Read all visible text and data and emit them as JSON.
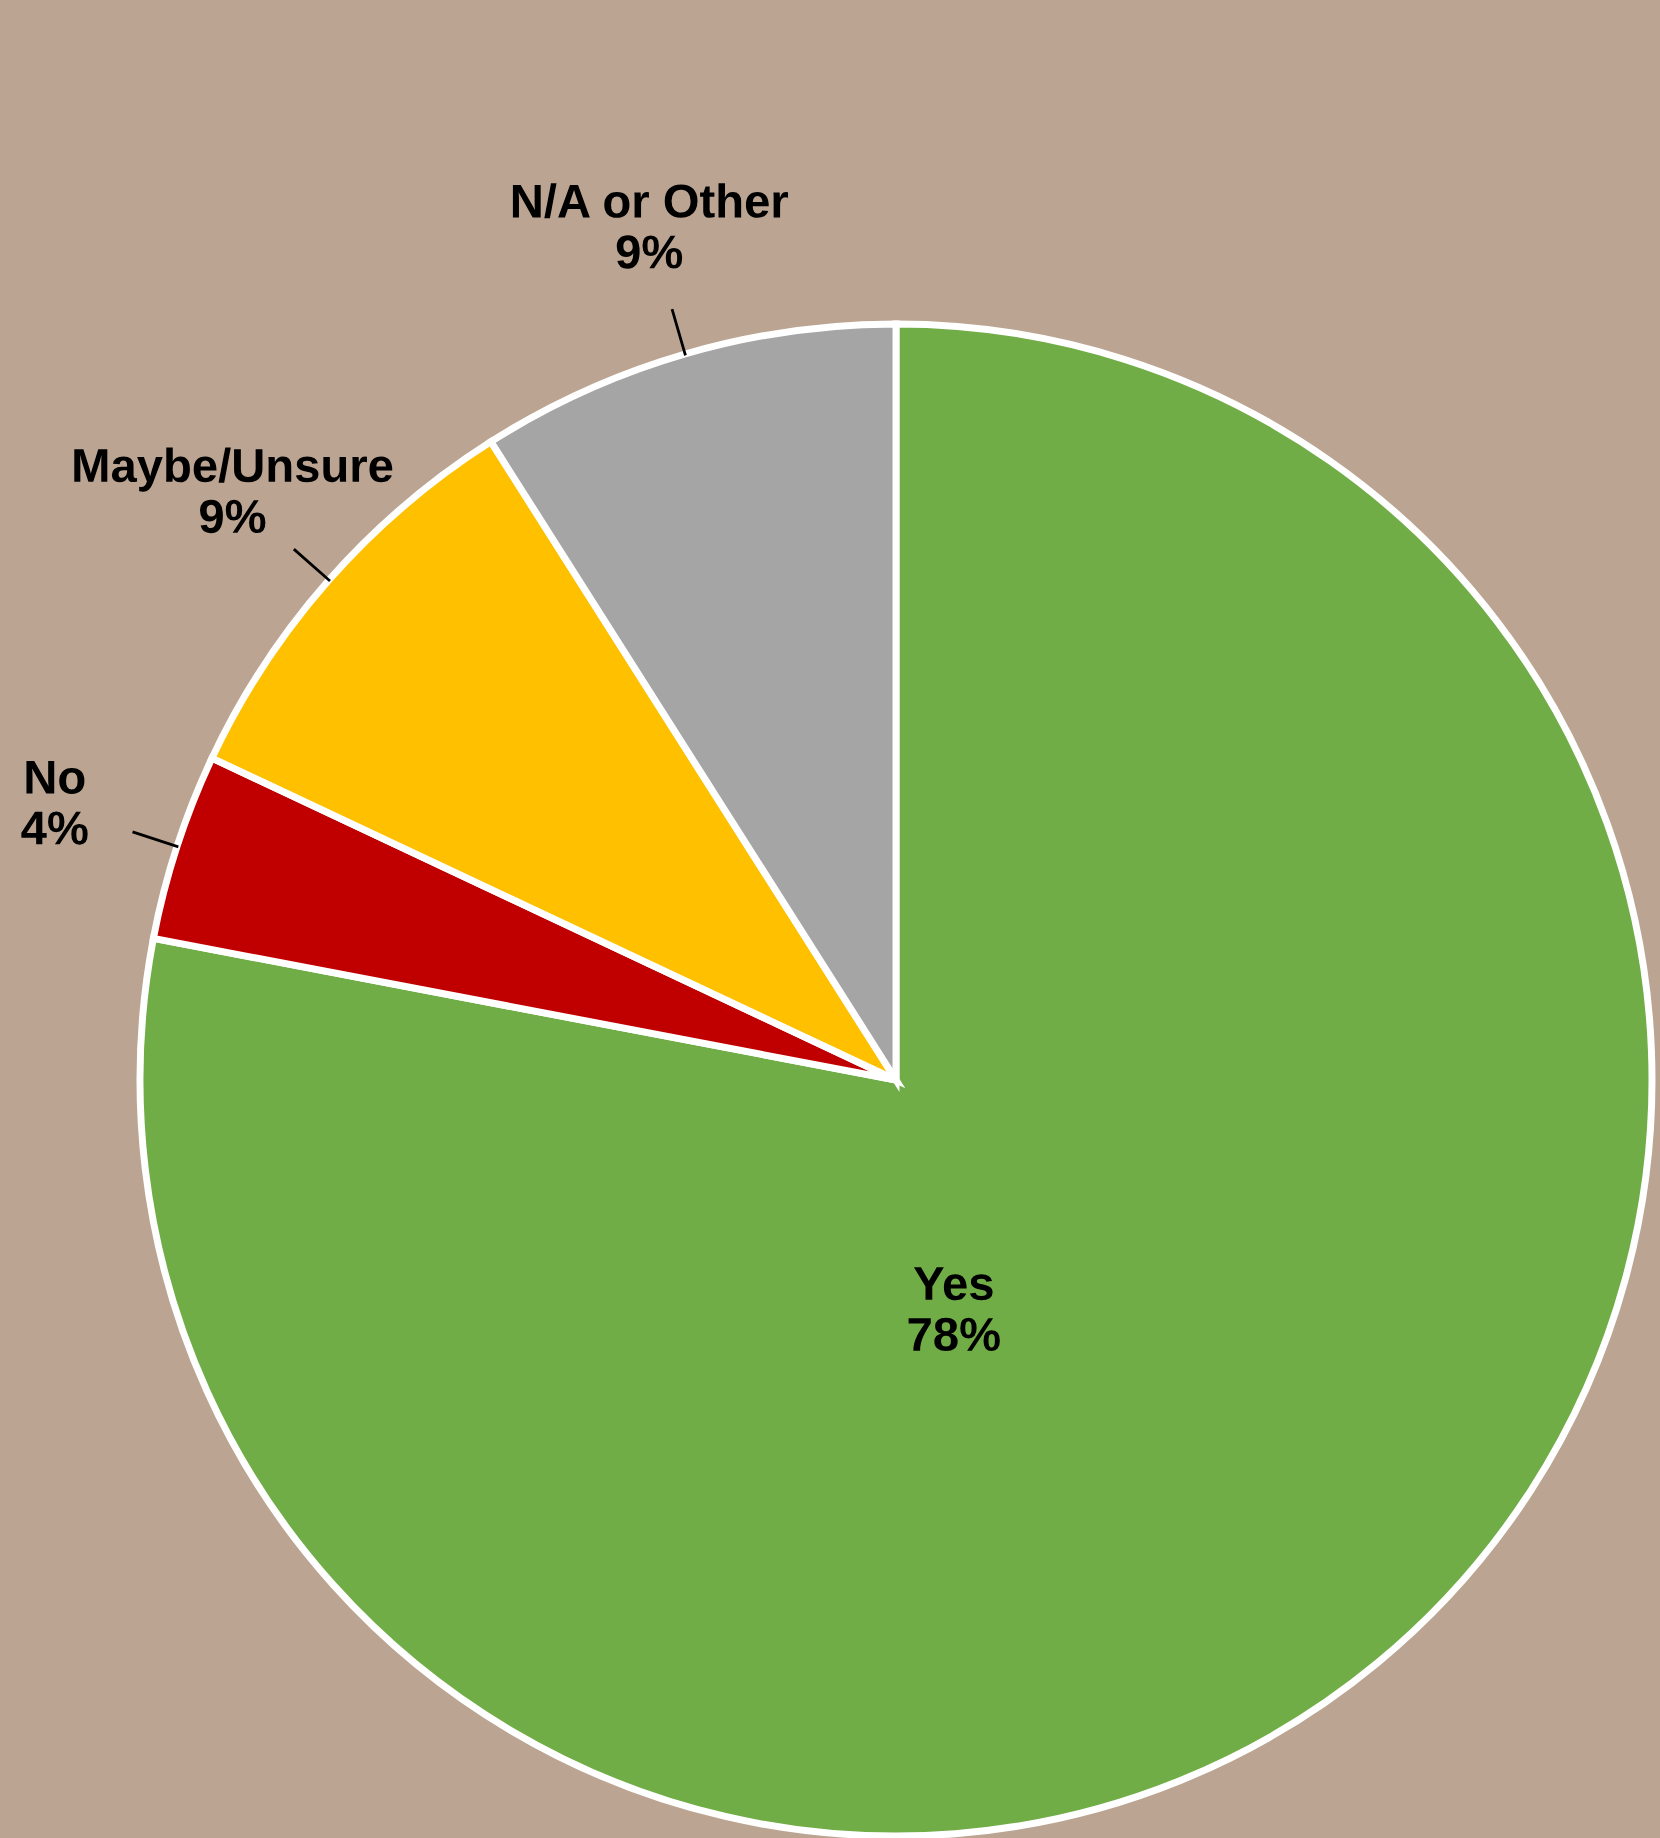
{
  "chart_data": {
    "type": "pie",
    "categories": [
      "Yes",
      "No",
      "Maybe/Unsure",
      "N/A or Other"
    ],
    "values": [
      78,
      4,
      9,
      9
    ],
    "colors": [
      "#70ad47",
      "#c00000",
      "#ffc000",
      "#a5a5a5"
    ],
    "value_labels": [
      "78%",
      "4%",
      "9%",
      "9%"
    ],
    "legend": false
  }
}
